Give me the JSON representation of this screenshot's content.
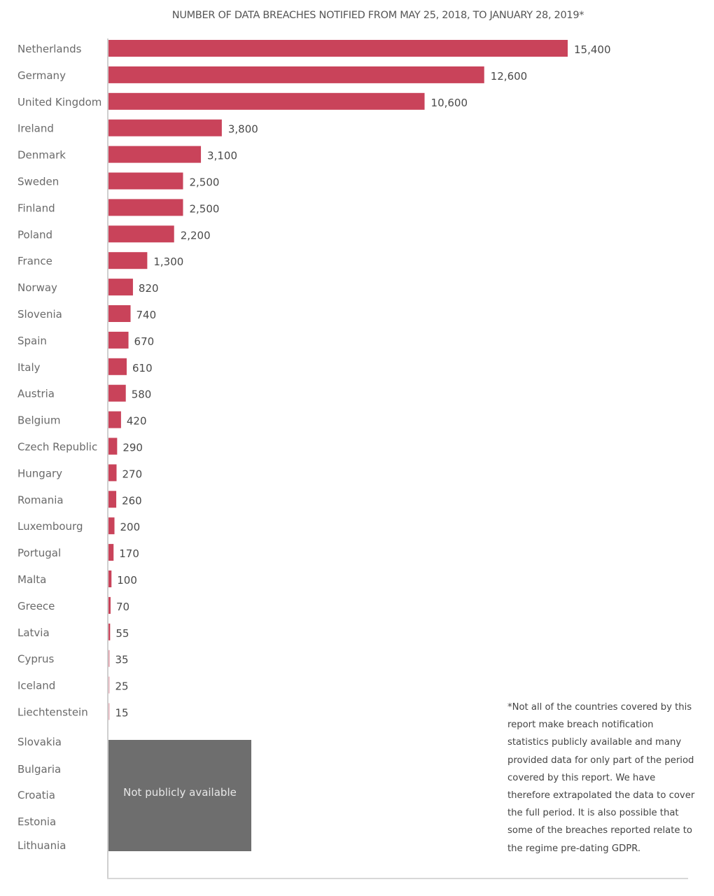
{
  "chart_data": {
    "type": "bar",
    "orientation": "horizontal",
    "title": "NUMBER OF DATA BREACHES NOTIFIED FROM MAY 25, 2018, TO JANUARY 28, 2019*",
    "xlabel": "",
    "ylabel": "",
    "xlim": [
      0,
      15400
    ],
    "grid": false,
    "bar_color": "#c9435a",
    "na_color": "#6e6e6e",
    "categories": [
      "Netherlands",
      "Germany",
      "United Kingdom",
      "Ireland",
      "Denmark",
      "Sweden",
      "Finland",
      "Poland",
      "France",
      "Norway",
      "Slovenia",
      "Spain",
      "Italy",
      "Austria",
      "Belgium",
      "Czech Republic",
      "Hungary",
      "Romania",
      "Luxembourg",
      "Portugal",
      "Malta",
      "Greece",
      "Latvia",
      "Cyprus",
      "Iceland",
      "Liechtenstein"
    ],
    "values": [
      15400,
      12600,
      10600,
      3800,
      3100,
      2500,
      2500,
      2200,
      1300,
      820,
      740,
      670,
      610,
      580,
      420,
      290,
      270,
      260,
      200,
      170,
      100,
      70,
      55,
      35,
      25,
      15
    ],
    "value_labels": [
      "15,400",
      "12,600",
      "10,600",
      "3,800",
      "3,100",
      "2,500",
      "2,500",
      "2,200",
      "1,300",
      "820",
      "740",
      "670",
      "610",
      "580",
      "420",
      "290",
      "270",
      "260",
      "200",
      "170",
      "100",
      "70",
      "55",
      "35",
      "25",
      "15"
    ],
    "not_available": {
      "categories": [
        "Slovakia",
        "Bulgaria",
        "Croatia",
        "Estonia",
        "Lithuania"
      ],
      "label": "Not publicly available"
    },
    "footnote": "*Not all of the countries covered by this report make breach notification statistics publicly available and many provided data for only part of the period covered by this report. We have therefore extrapolated the data to cover the full period. It is also possible that some of the breaches reported relate to the regime pre-dating GDPR."
  }
}
